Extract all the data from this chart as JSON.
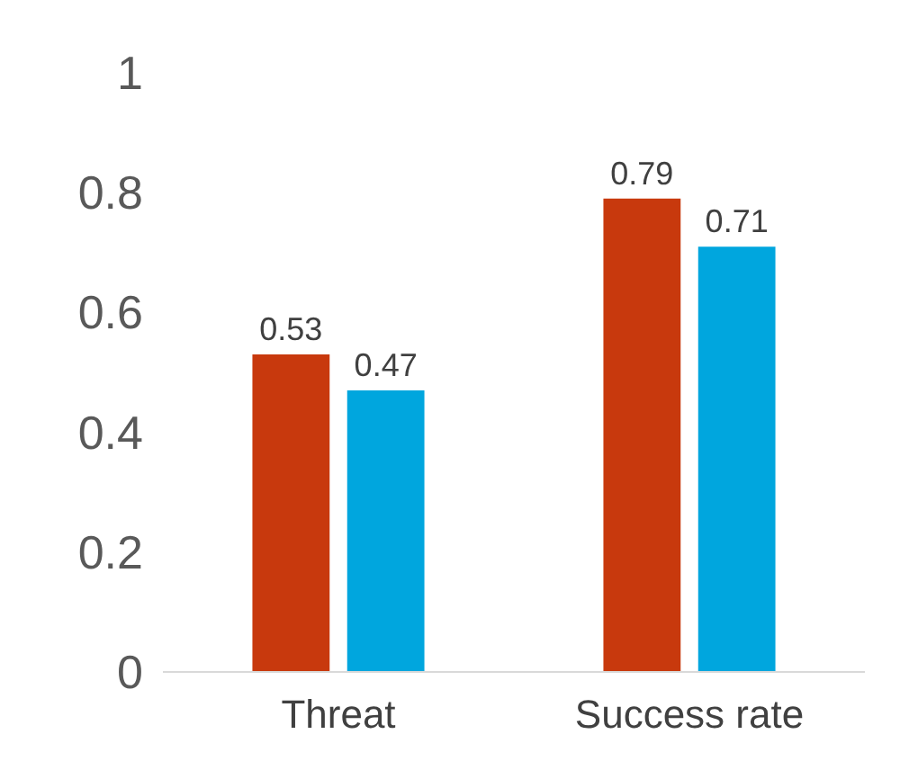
{
  "chart_data": {
    "type": "bar",
    "categories": [
      "Threat",
      "Success rate"
    ],
    "series": [
      {
        "color": "#c8390d",
        "values": [
          0.53,
          0.79
        ]
      },
      {
        "color": "#00a6de",
        "values": [
          0.47,
          0.71
        ]
      }
    ],
    "ylim": [
      0,
      1
    ],
    "yticks": [
      0,
      0.2,
      0.4,
      0.6,
      0.8,
      1
    ],
    "grid": false,
    "data_labels": true
  }
}
